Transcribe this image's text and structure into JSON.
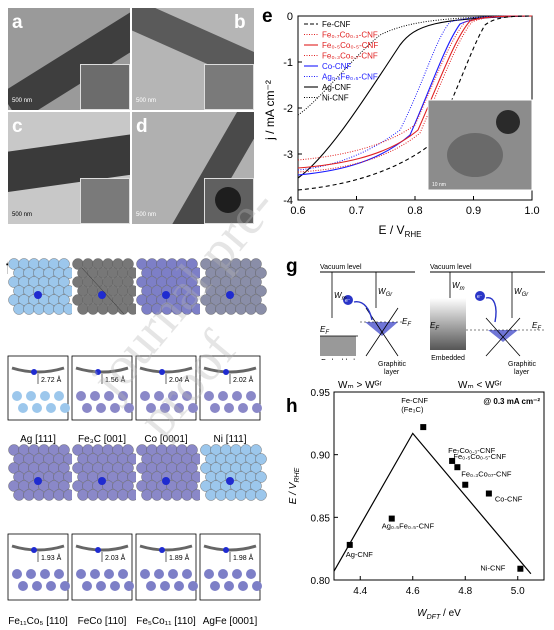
{
  "panels": {
    "a": "a",
    "b": "b",
    "c": "c",
    "d": "d",
    "e": "e",
    "f": "f",
    "g": "g",
    "h": "h"
  },
  "tem": {
    "scale_label": "500 nm",
    "inset_scale": "10 nm"
  },
  "panel_e": {
    "ylabel": "j / mA cm⁻²",
    "xlabel": "E / V",
    "xlabel_sub": "RHE",
    "legend": [
      {
        "name": "Fe-CNF",
        "color": "#000000",
        "style": "dashed"
      },
      {
        "name": "Fe₀.₇Co₀.₃-CNF",
        "color": "#e02020",
        "style": "dotted"
      },
      {
        "name": "Fe₀.₅Co₀.₅-CNF",
        "color": "#e02020",
        "style": "solid"
      },
      {
        "name": "Fe₀.₃Co₀.₇-CNF",
        "color": "#e02020",
        "style": "dotted"
      },
      {
        "name": "Co-CNF",
        "color": "#1a1aff",
        "style": "solid"
      },
      {
        "name": "Ag₀.₅Fe₀.₅-CNF",
        "color": "#1a1aff",
        "style": "dotted"
      },
      {
        "name": "Ag-CNF",
        "color": "#000000",
        "style": "solid"
      },
      {
        "name": "Ni-CNF",
        "color": "#000000",
        "style": "dotted"
      }
    ],
    "xticks": [
      "0.6",
      "0.7",
      "0.8",
      "0.9",
      "1.0"
    ],
    "yticks": [
      "0",
      "-1",
      "-2",
      "-3",
      "-4"
    ],
    "inset_scale": "10 nm"
  },
  "panel_f": {
    "labels_top": [
      "Ag [111]",
      "Fe₃C [001]",
      "Co [0001]",
      "Ni [111]"
    ],
    "labels_bottom": [
      "Fe₁₁Co₅ [110]",
      "FeCo [110]",
      "Fe₅Co₁₁ [110]",
      "AgFe [0001]"
    ],
    "distances_top": [
      "2.72 Å",
      "1.56 Å",
      "2.04 Å",
      "2.02 Å"
    ],
    "distances_bottom": [
      "1.93 Å",
      "2.03 Å",
      "1.89 Å",
      "1.98 Å"
    ]
  },
  "panel_g": {
    "vacuum": "Vacuum level",
    "wm": "W",
    "wm_sub": "m",
    "wgr": "W",
    "wgr_sub": "Gr",
    "ef": "E",
    "ef_sub": "F",
    "electron": "e⁻",
    "embedded": "Embedded\nMetal",
    "embedded2": "Embedded\nmetal",
    "graphitic": "Graphitic\nlayer",
    "cond1": "Wₘ > Wᴳʳ",
    "cond2": "Wₘ < Wᴳʳ"
  },
  "chart_data": {
    "type": "scatter",
    "title": "",
    "annotation": "@ 0.3 mA cm⁻²",
    "xlabel": "W",
    "xlabel_sub": "DFT",
    "xlabel_unit": " / eV",
    "ylabel": "E / V",
    "ylabel_sub": "RHE",
    "xlim": [
      4.3,
      5.1
    ],
    "ylim": [
      0.8,
      0.95
    ],
    "xticks": [
      "4.4",
      "4.6",
      "4.8",
      "5.0"
    ],
    "yticks": [
      "0.80",
      "0.85",
      "0.90",
      "0.95"
    ],
    "points": [
      {
        "label": "Fe-CNF\n(Fe₃C)",
        "x": 4.64,
        "y": 0.922
      },
      {
        "label": "Fe₇Co₀.₃-CNF",
        "x": 4.75,
        "y": 0.895
      },
      {
        "label": "Fe₀.₅Co₀.₅-CNF",
        "x": 4.77,
        "y": 0.89
      },
      {
        "label": "Fe₀.₃Co₀₇-CNF",
        "x": 4.8,
        "y": 0.876
      },
      {
        "label": "Co-CNF",
        "x": 4.89,
        "y": 0.869
      },
      {
        "label": "Ag₀.₅Fe₀.₅-CNF",
        "x": 4.52,
        "y": 0.849
      },
      {
        "label": "Ag-CNF",
        "x": 4.36,
        "y": 0.828
      },
      {
        "label": "Ni-CNF",
        "x": 5.01,
        "y": 0.809
      }
    ],
    "volcano": [
      [
        4.3,
        0.807
      ],
      [
        4.6,
        0.917
      ],
      [
        5.05,
        0.805
      ]
    ]
  },
  "watermark": "journal pre-proof"
}
